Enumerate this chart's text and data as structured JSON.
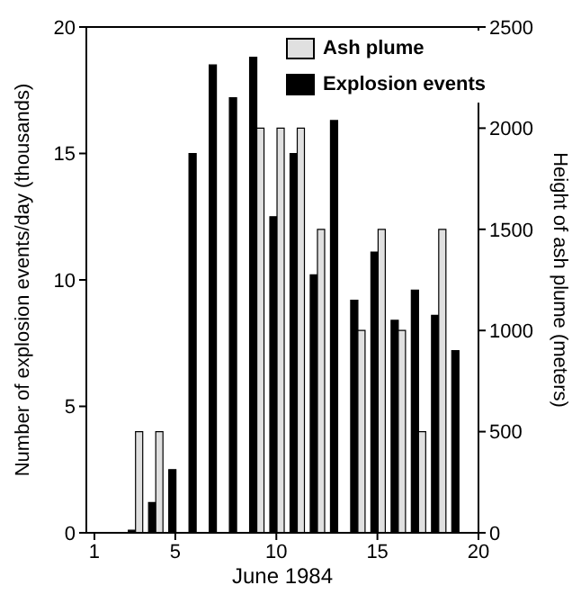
{
  "chart_data": {
    "type": "bar",
    "xlabel": "June 1984",
    "ylabel": "Number of explosion events/day (thousands)",
    "y2label": "Height of ash plume (meters)",
    "x": [
      1,
      2,
      3,
      4,
      5,
      6,
      7,
      8,
      9,
      10,
      11,
      12,
      13,
      14,
      15,
      16,
      17,
      18,
      19
    ],
    "series": [
      {
        "name": "Explosion events",
        "color": "#000000",
        "values": [
          0,
          0,
          0.1,
          1.2,
          2.5,
          15,
          18.5,
          17.2,
          18.8,
          12.5,
          15,
          10.2,
          16.3,
          9.2,
          11.1,
          8.4,
          9.6,
          8.6,
          7.2
        ]
      },
      {
        "name": "Ash plume",
        "color": "#e0e0e0",
        "axis": "y2",
        "values": [
          null,
          null,
          500,
          500,
          null,
          null,
          null,
          null,
          2000,
          2000,
          2000,
          1500,
          null,
          1000,
          1500,
          1000,
          500,
          1500,
          null
        ]
      }
    ],
    "xlim": [
      0.6,
      20
    ],
    "xticks": [
      1,
      5,
      10,
      15,
      20
    ],
    "ylim": [
      0,
      20
    ],
    "yticks": [
      0,
      5,
      10,
      15,
      20
    ],
    "y2lim": [
      0,
      2500
    ],
    "y2ticks": [
      0,
      500,
      1000,
      1500,
      2000,
      2500
    ],
    "legend": "top right",
    "grid": false
  }
}
